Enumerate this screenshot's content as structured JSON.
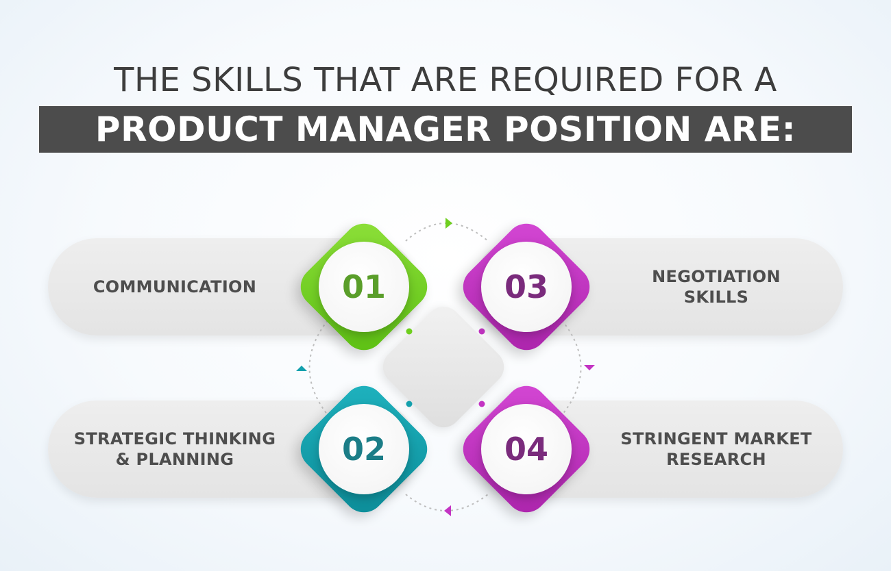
{
  "title": {
    "line1": "THE SKILLS THAT ARE REQUIRED FOR A",
    "line2": "PRODUCT MANAGER POSITION ARE:"
  },
  "skills": [
    {
      "number": "01",
      "label": "COMMUNICATION",
      "color": "#6fcf1f"
    },
    {
      "number": "02",
      "label": "STRATEGIC THINKING & PLANNING",
      "color": "#13a0ad"
    },
    {
      "number": "03",
      "label": "NEGOTIATION SKILLS",
      "color": "#c334c3"
    },
    {
      "number": "04",
      "label": "STRINGENT MARKET RESEARCH",
      "color": "#c334c3"
    }
  ],
  "colors": {
    "green": "#6fcf1f",
    "teal": "#13a0ad",
    "magenta": "#c334c3",
    "number_green": "#5a9e2a",
    "number_teal": "#1b7d87",
    "number_purple": "#7a2b7c",
    "title_bar": "#4c4c4c"
  }
}
